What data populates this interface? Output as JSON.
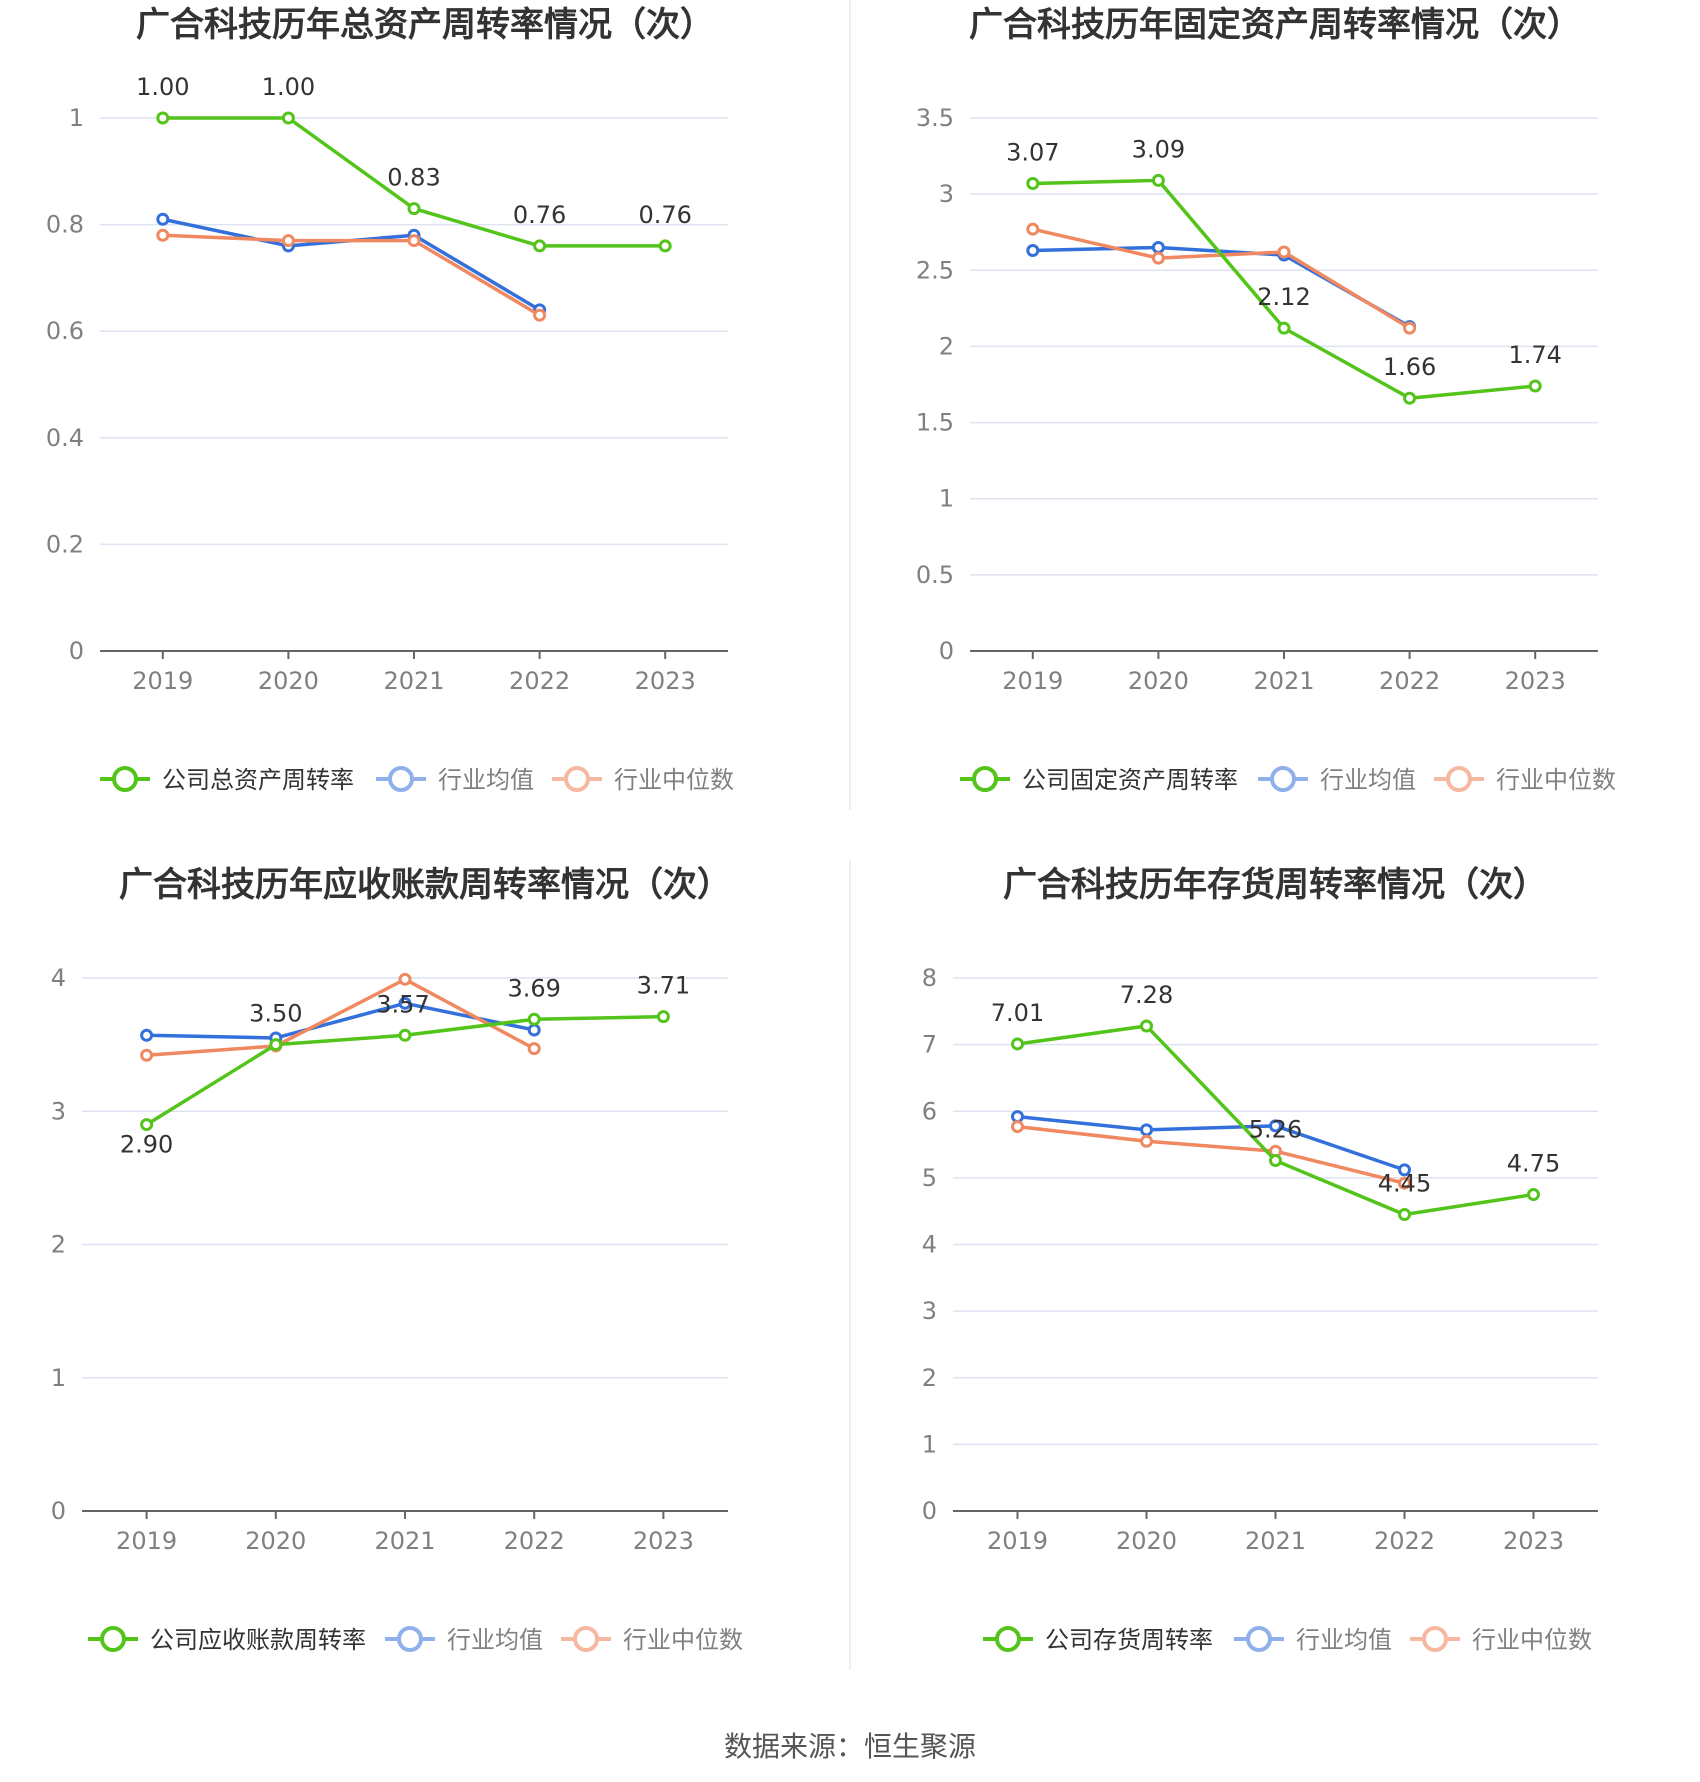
{
  "footer": {
    "source": "数据来源：恒生聚源"
  },
  "colors": {
    "company": "#52c41a",
    "avg": "#3370db",
    "median": "#f08860",
    "grid": "#dde3f0",
    "axis": "#666666",
    "tick": "#808080",
    "title": "#333333"
  },
  "chart_data": [
    {
      "type": "line",
      "title": "广合科技历年总资产周转率情况（次）",
      "categories": [
        "2019",
        "2020",
        "2021",
        "2022",
        "2023"
      ],
      "ylim": [
        0,
        1
      ],
      "yticks": [
        0,
        0.2,
        0.4,
        0.6,
        0.8,
        1
      ],
      "ytick_labels": [
        "0",
        "0.2",
        "0.4",
        "0.6",
        "0.8",
        "1"
      ],
      "grid": true,
      "legend_position": "bottom",
      "series": [
        {
          "name": "公司总资产周转率",
          "color": "#52c41a",
          "values": [
            1.0,
            1.0,
            0.83,
            0.76,
            0.76
          ],
          "labels": [
            "1.00",
            "1.00",
            "0.83",
            "0.76",
            "0.76"
          ]
        },
        {
          "name": "行业均值",
          "color": "#3370db",
          "values": [
            0.81,
            0.76,
            0.78,
            0.64,
            null
          ]
        },
        {
          "name": "行业中位数",
          "color": "#f08860",
          "values": [
            0.78,
            0.77,
            0.77,
            0.63,
            null
          ]
        }
      ]
    },
    {
      "type": "line",
      "title": "广合科技历年固定资产周转率情况（次）",
      "categories": [
        "2019",
        "2020",
        "2021",
        "2022",
        "2023"
      ],
      "ylim": [
        0,
        3.5
      ],
      "yticks": [
        0,
        0.5,
        1,
        1.5,
        2,
        2.5,
        3,
        3.5
      ],
      "ytick_labels": [
        "0",
        "0.5",
        "1",
        "1.5",
        "2",
        "2.5",
        "3",
        "3.5"
      ],
      "grid": true,
      "legend_position": "bottom",
      "series": [
        {
          "name": "公司固定资产周转率",
          "color": "#52c41a",
          "values": [
            3.07,
            3.09,
            2.12,
            1.66,
            1.74
          ],
          "labels": [
            "3.07",
            "3.09",
            "2.12",
            "1.66",
            "1.74"
          ]
        },
        {
          "name": "行业均值",
          "color": "#3370db",
          "values": [
            2.63,
            2.65,
            2.6,
            2.13,
            null
          ]
        },
        {
          "name": "行业中位数",
          "color": "#f08860",
          "values": [
            2.77,
            2.58,
            2.62,
            2.12,
            null
          ]
        }
      ]
    },
    {
      "type": "line",
      "title": "广合科技历年应收账款周转率情况（次）",
      "categories": [
        "2019",
        "2020",
        "2021",
        "2022",
        "2023"
      ],
      "ylim": [
        0,
        4
      ],
      "yticks": [
        0,
        1,
        2,
        3,
        4
      ],
      "ytick_labels": [
        "0",
        "1",
        "2",
        "3",
        "4"
      ],
      "grid": true,
      "legend_position": "bottom",
      "series": [
        {
          "name": "公司应收账款周转率",
          "color": "#52c41a",
          "values": [
            2.9,
            3.5,
            3.57,
            3.69,
            3.71
          ],
          "labels": [
            "2.90",
            "3.50",
            "3.57",
            "3.69",
            "3.71"
          ]
        },
        {
          "name": "行业均值",
          "color": "#3370db",
          "values": [
            3.57,
            3.55,
            3.81,
            3.61,
            null
          ]
        },
        {
          "name": "行业中位数",
          "color": "#f08860",
          "values": [
            3.42,
            3.49,
            3.99,
            3.47,
            null
          ]
        }
      ]
    },
    {
      "type": "line",
      "title": "广合科技历年存货周转率情况（次）",
      "categories": [
        "2019",
        "2020",
        "2021",
        "2022",
        "2023"
      ],
      "ylim": [
        0,
        8
      ],
      "yticks": [
        0,
        1,
        2,
        3,
        4,
        5,
        6,
        7,
        8
      ],
      "ytick_labels": [
        "0",
        "1",
        "2",
        "3",
        "4",
        "5",
        "6",
        "7",
        "8"
      ],
      "grid": true,
      "legend_position": "bottom",
      "series": [
        {
          "name": "公司存货周转率",
          "color": "#52c41a",
          "values": [
            7.01,
            7.28,
            5.26,
            4.45,
            4.75
          ],
          "labels": [
            "7.01",
            "7.28",
            "5.26",
            "4.45",
            "4.75"
          ]
        },
        {
          "name": "行业均值",
          "color": "#3370db",
          "values": [
            5.92,
            5.72,
            5.78,
            5.12,
            null
          ]
        },
        {
          "name": "行业中位数",
          "color": "#f08860",
          "values": [
            5.77,
            5.55,
            5.4,
            4.92,
            null
          ]
        }
      ]
    }
  ]
}
